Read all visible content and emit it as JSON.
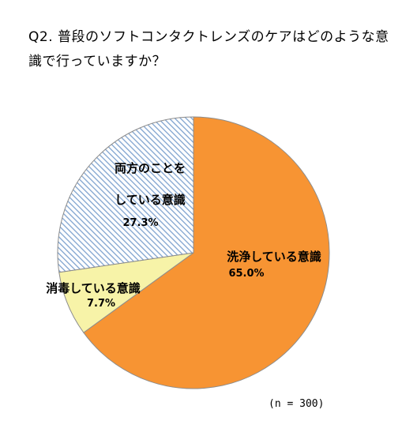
{
  "chart_data": {
    "type": "pie",
    "title": "Q2. 普段のソフトコンタクトレンズのケアはどのような意識で行っていますか？",
    "note": "(n = 300)",
    "slices": [
      {
        "label": "洗浄している意識",
        "value": 65.0,
        "display": "65.0%",
        "color": "#f79433",
        "pattern": "solid"
      },
      {
        "label": "消毒している意識",
        "value": 7.7,
        "display": "7.7%",
        "color": "#f7f3a8",
        "pattern": "solid"
      },
      {
        "label_lines": [
          "両方のことを",
          "している意識"
        ],
        "value": 27.3,
        "display": "27.3%",
        "color": "#9fbede",
        "pattern": "hatch"
      }
    ]
  }
}
